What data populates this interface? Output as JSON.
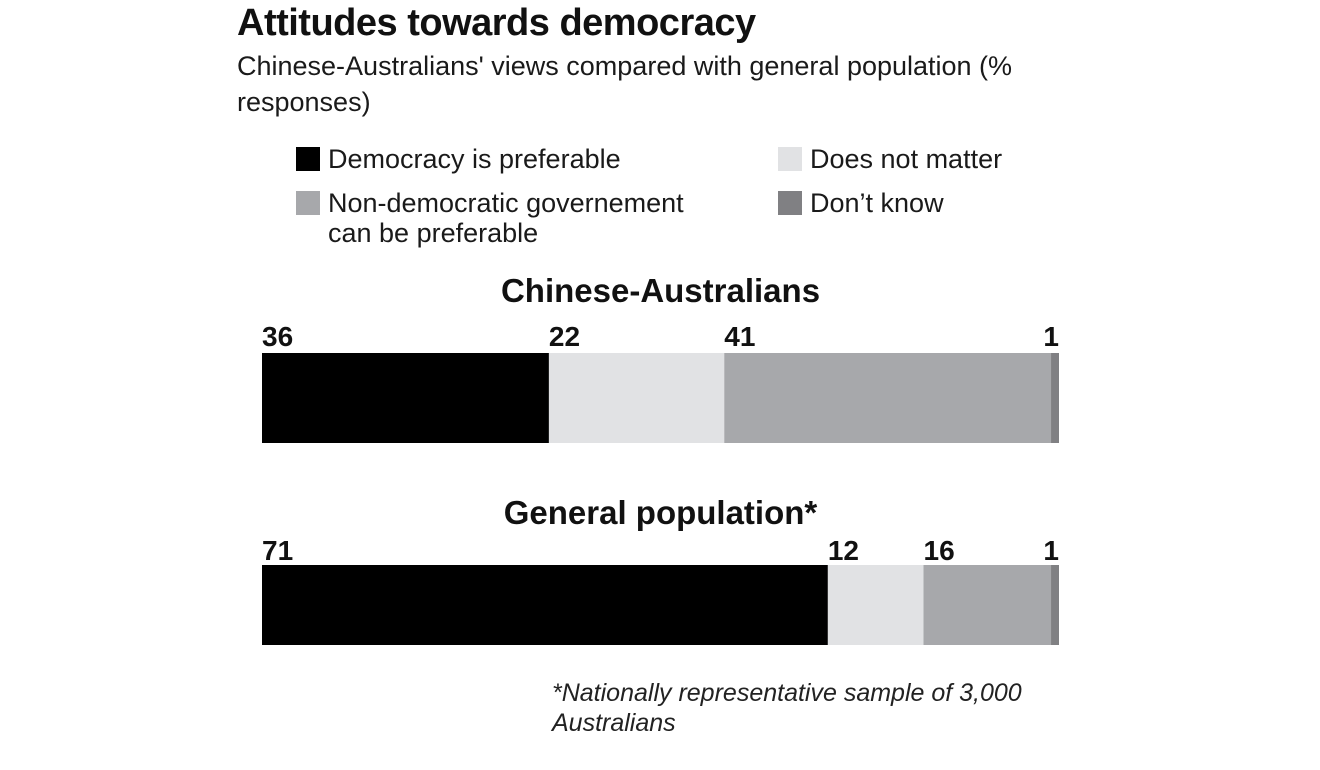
{
  "title": "Attitudes towards democracy",
  "subtitle": "Chinese-Australians' views compared with general population (% responses)",
  "legend": [
    {
      "label": "Democracy is preferable",
      "color": "#000000"
    },
    {
      "label": "Does not matter",
      "color": "#e1e2e4"
    },
    {
      "label": "Non-democratic governement can be preferable",
      "color": "#a7a8ab"
    },
    {
      "label": "Don’t know",
      "color": "#808083"
    }
  ],
  "chart_data": {
    "type": "bar",
    "orientation": "horizontal-stacked",
    "stack_order": [
      "Democracy is preferable",
      "Does not matter",
      "Non-democratic governement can be preferable",
      "Don’t know"
    ],
    "colors": [
      "#000000",
      "#e1e2e4",
      "#a7a8ab",
      "#808083"
    ],
    "groups": [
      {
        "title": "Chinese-Australians",
        "values": [
          36,
          22,
          41,
          1
        ]
      },
      {
        "title": "General population*",
        "values": [
          71,
          12,
          16,
          1
        ]
      }
    ],
    "grid": false
  },
  "footnote": "*Nationally representative sample of 3,000 Australians"
}
